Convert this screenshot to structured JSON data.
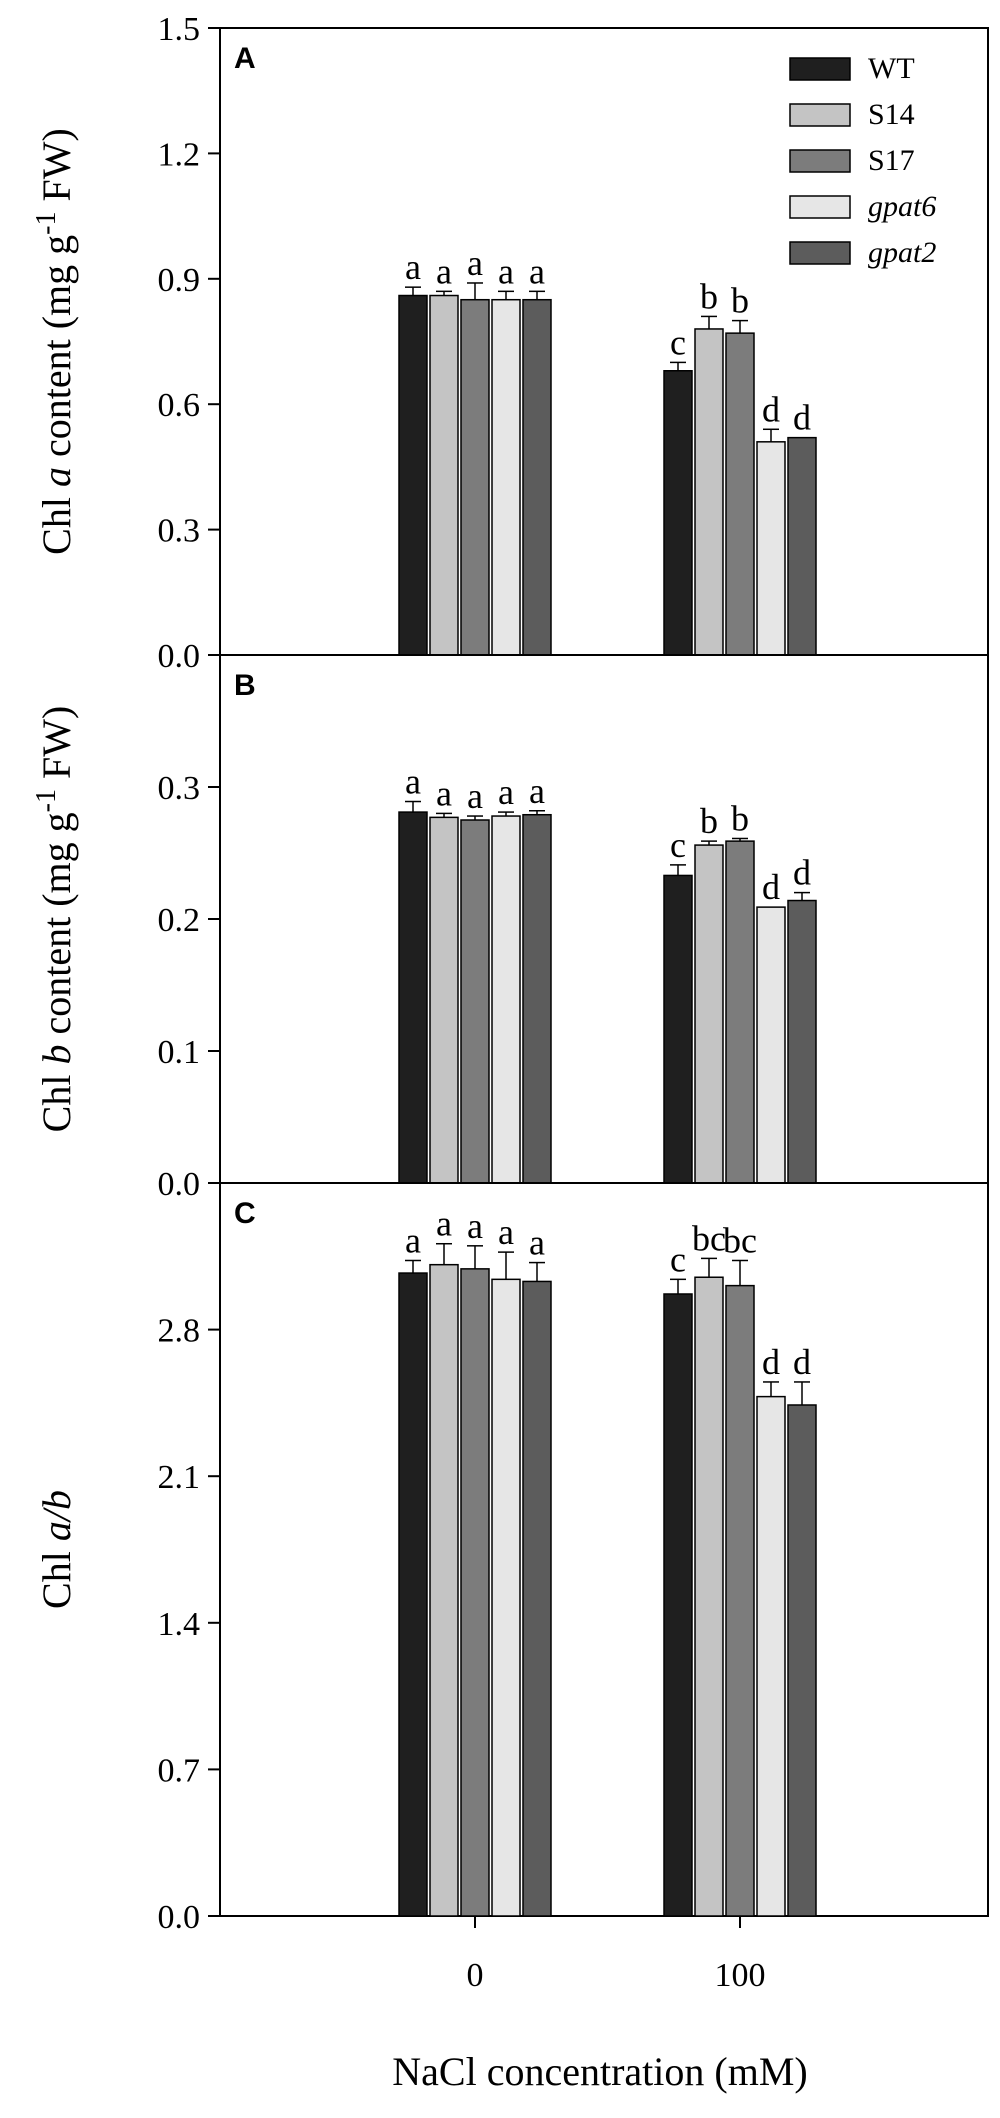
{
  "x_axis_title": "NaCl concentration (mM)",
  "chart_data": [
    {
      "type": "bar",
      "panel": "A",
      "ylabel": "Chl a content (mg g-1 FW)",
      "ylabel_parts": {
        "pre": "Chl ",
        "italic": "a",
        "mid": " content (mg g",
        "sup": "-1",
        "post": " FW)"
      },
      "categories": [
        "0",
        "100"
      ],
      "ylim": [
        0,
        1.5
      ],
      "yticks": [
        "0.0",
        "0.3",
        "0.6",
        "0.9",
        "1.2",
        "1.5"
      ],
      "ytick_values": [
        0,
        0.3,
        0.6,
        0.9,
        1.2,
        1.5
      ],
      "series": [
        {
          "name": "WT",
          "values": [
            0.86,
            0.68
          ],
          "errors": [
            0.02,
            0.02
          ],
          "labels": [
            "a",
            "c"
          ]
        },
        {
          "name": "S14",
          "values": [
            0.86,
            0.78
          ],
          "errors": [
            0.01,
            0.03
          ],
          "labels": [
            "a",
            "b"
          ]
        },
        {
          "name": "S17",
          "values": [
            0.85,
            0.77
          ],
          "errors": [
            0.04,
            0.03
          ],
          "labels": [
            "a",
            "b"
          ]
        },
        {
          "name": "gpat6",
          "values": [
            0.85,
            0.51
          ],
          "errors": [
            0.02,
            0.03
          ],
          "labels": [
            "a",
            "d"
          ]
        },
        {
          "name": "gpat2",
          "values": [
            0.85,
            0.52
          ],
          "errors": [
            0.02,
            0.0
          ],
          "labels": [
            "a",
            "d"
          ]
        }
      ],
      "legend": {
        "position": "top-right",
        "entries": [
          "WT",
          "S14",
          "S17",
          "gpat6",
          "gpat2"
        ],
        "italic": [
          false,
          false,
          false,
          true,
          true
        ]
      }
    },
    {
      "type": "bar",
      "panel": "B",
      "ylabel": "Chl b content (mg g-1 FW)",
      "ylabel_parts": {
        "pre": "Chl ",
        "italic": "b",
        "mid": " content (mg g",
        "sup": "-1",
        "post": " FW)"
      },
      "categories": [
        "0",
        "100"
      ],
      "ylim": [
        0,
        0.4
      ],
      "yticks": [
        "0.0",
        "0.1",
        "0.2",
        "0.3"
      ],
      "ytick_values": [
        0,
        0.1,
        0.2,
        0.3
      ],
      "series": [
        {
          "name": "WT",
          "values": [
            0.281,
            0.233
          ],
          "errors": [
            0.008,
            0.008
          ],
          "labels": [
            "a",
            "c"
          ]
        },
        {
          "name": "S14",
          "values": [
            0.277,
            0.256
          ],
          "errors": [
            0.003,
            0.003
          ],
          "labels": [
            "a",
            "b"
          ]
        },
        {
          "name": "S17",
          "values": [
            0.275,
            0.259
          ],
          "errors": [
            0.003,
            0.002
          ],
          "labels": [
            "a",
            "b"
          ]
        },
        {
          "name": "gpat6",
          "values": [
            0.278,
            0.209
          ],
          "errors": [
            0.003,
            0.0
          ],
          "labels": [
            "a",
            "d"
          ]
        },
        {
          "name": "gpat2",
          "values": [
            0.279,
            0.214
          ],
          "errors": [
            0.003,
            0.006
          ],
          "labels": [
            "a",
            "d"
          ]
        }
      ]
    },
    {
      "type": "bar",
      "panel": "C",
      "ylabel": "Chl a/b",
      "ylabel_parts": {
        "pre": "Chl ",
        "italic": "a/b",
        "mid": "",
        "sup": "",
        "post": ""
      },
      "categories": [
        "0",
        "100"
      ],
      "xticks": [
        "0",
        "100"
      ],
      "ylim": [
        0,
        3.5
      ],
      "yticks": [
        "0.0",
        "0.7",
        "1.4",
        "2.1",
        "2.8"
      ],
      "ytick_values": [
        0,
        0.7,
        1.4,
        2.1,
        2.8
      ],
      "series": [
        {
          "name": "WT",
          "values": [
            3.07,
            2.97
          ],
          "errors": [
            0.06,
            0.07
          ],
          "labels": [
            "a",
            "c"
          ]
        },
        {
          "name": "S14",
          "values": [
            3.11,
            3.05
          ],
          "errors": [
            0.1,
            0.09
          ],
          "labels": [
            "a",
            "bc"
          ]
        },
        {
          "name": "S17",
          "values": [
            3.09,
            3.01
          ],
          "errors": [
            0.11,
            0.12
          ],
          "labels": [
            "a",
            "bc"
          ]
        },
        {
          "name": "gpat6",
          "values": [
            3.04,
            2.48
          ],
          "errors": [
            0.13,
            0.07
          ],
          "labels": [
            "a",
            "d"
          ]
        },
        {
          "name": "gpat2",
          "values": [
            3.03,
            2.44
          ],
          "errors": [
            0.09,
            0.11
          ],
          "labels": [
            "a",
            "d"
          ]
        }
      ]
    }
  ],
  "colors": {
    "WT": "#1f1f1f",
    "S14": "#c4c4c4",
    "S17": "#7c7c7c",
    "gpat6": "#e6e6e6",
    "gpat2": "#5c5c5c"
  }
}
